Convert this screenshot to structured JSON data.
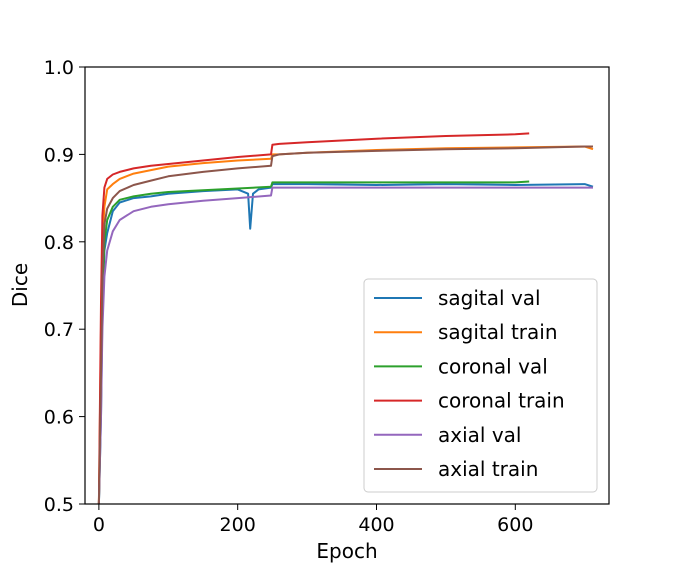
{
  "chart_data": {
    "type": "line",
    "xlabel": "Epoch",
    "ylabel": "Dice",
    "xlim": [
      -20,
      735
    ],
    "ylim": [
      0.5,
      1.0
    ],
    "x_ticks": [
      0,
      200,
      400,
      600
    ],
    "x_tick_labels": [
      "0",
      "200",
      "400",
      "600"
    ],
    "y_ticks": [
      0.5,
      0.6,
      0.7,
      0.8,
      0.9,
      1.0
    ],
    "y_tick_labels": [
      "0.5",
      "0.6",
      "0.7",
      "0.8",
      "0.9",
      "1.0"
    ],
    "grid": false,
    "legend_position": "lower-right",
    "series": [
      {
        "name": "sagital val",
        "color": "#1f77b4",
        "x": [
          0,
          3,
          5,
          8,
          12,
          20,
          30,
          50,
          75,
          100,
          150,
          200,
          215,
          218,
          222,
          230,
          248,
          250,
          260,
          300,
          400,
          500,
          600,
          700,
          712
        ],
        "y": [
          0.5,
          0.6,
          0.72,
          0.79,
          0.81,
          0.835,
          0.845,
          0.85,
          0.852,
          0.855,
          0.858,
          0.86,
          0.855,
          0.815,
          0.855,
          0.86,
          0.862,
          0.866,
          0.866,
          0.866,
          0.865,
          0.866,
          0.865,
          0.866,
          0.863
        ]
      },
      {
        "name": "sagital train",
        "color": "#ff7f0e",
        "x": [
          0,
          3,
          5,
          8,
          12,
          20,
          30,
          50,
          75,
          100,
          150,
          200,
          248,
          250,
          260,
          300,
          400,
          500,
          600,
          700,
          712
        ],
        "y": [
          0.5,
          0.7,
          0.8,
          0.84,
          0.86,
          0.866,
          0.872,
          0.878,
          0.882,
          0.886,
          0.89,
          0.893,
          0.895,
          0.9,
          0.9,
          0.902,
          0.905,
          0.907,
          0.908,
          0.909,
          0.906
        ]
      },
      {
        "name": "coronal val",
        "color": "#2ca02c",
        "x": [
          0,
          3,
          5,
          8,
          12,
          20,
          30,
          50,
          75,
          100,
          150,
          200,
          248,
          250,
          260,
          300,
          400,
          500,
          600,
          620
        ],
        "y": [
          0.5,
          0.62,
          0.73,
          0.8,
          0.825,
          0.84,
          0.848,
          0.852,
          0.855,
          0.857,
          0.859,
          0.861,
          0.863,
          0.868,
          0.868,
          0.868,
          0.868,
          0.868,
          0.868,
          0.869
        ]
      },
      {
        "name": "coronal train",
        "color": "#d62728",
        "x": [
          0,
          3,
          5,
          8,
          12,
          20,
          30,
          50,
          75,
          100,
          150,
          200,
          248,
          250,
          260,
          300,
          400,
          500,
          600,
          620
        ],
        "y": [
          0.5,
          0.73,
          0.83,
          0.862,
          0.872,
          0.877,
          0.88,
          0.884,
          0.887,
          0.889,
          0.893,
          0.897,
          0.9,
          0.911,
          0.912,
          0.914,
          0.918,
          0.921,
          0.923,
          0.924
        ]
      },
      {
        "name": "axial val",
        "color": "#9467bd",
        "x": [
          0,
          3,
          5,
          8,
          12,
          20,
          30,
          50,
          75,
          100,
          150,
          200,
          248,
          250,
          260,
          300,
          400,
          500,
          600,
          700,
          712
        ],
        "y": [
          0.5,
          0.6,
          0.7,
          0.76,
          0.79,
          0.812,
          0.825,
          0.835,
          0.84,
          0.843,
          0.847,
          0.85,
          0.853,
          0.862,
          0.862,
          0.862,
          0.862,
          0.862,
          0.862,
          0.862,
          0.862
        ]
      },
      {
        "name": "axial train",
        "color": "#8c564b",
        "x": [
          0,
          3,
          5,
          8,
          12,
          20,
          30,
          50,
          75,
          100,
          150,
          200,
          248,
          250,
          260,
          300,
          400,
          500,
          600,
          700,
          712
        ],
        "y": [
          0.5,
          0.65,
          0.76,
          0.82,
          0.838,
          0.85,
          0.858,
          0.865,
          0.87,
          0.875,
          0.88,
          0.884,
          0.887,
          0.898,
          0.9,
          0.902,
          0.904,
          0.906,
          0.907,
          0.909,
          0.909
        ]
      }
    ]
  }
}
